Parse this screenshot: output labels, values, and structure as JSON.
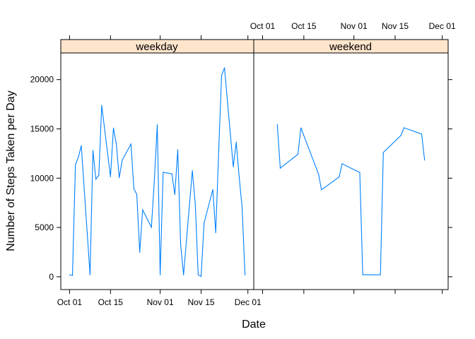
{
  "chart_data": {
    "type": "line",
    "layout": "lattice-panels-side-by-side",
    "xlabel": "Date",
    "ylabel": "Number of Steps Taken per Day",
    "xlim": [
      "2012-09-28",
      "2012-12-03"
    ],
    "ylim": [
      -1300,
      22700
    ],
    "x_ticks": [
      "Oct 01",
      "Oct 15",
      "Nov 01",
      "Nov 15",
      "Dec 01"
    ],
    "x_tick_dates": [
      "2012-10-01",
      "2012-10-15",
      "2012-11-01",
      "2012-11-15",
      "2012-12-01"
    ],
    "y_ticks": [
      0,
      5000,
      10000,
      15000,
      20000
    ],
    "strip_color": "#ffe5cc",
    "line_color": "#0080ff",
    "grid": false,
    "panels": [
      {
        "name": "weekday",
        "x": [
          "2012-10-01",
          "2012-10-02",
          "2012-10-03",
          "2012-10-04",
          "2012-10-05",
          "2012-10-08",
          "2012-10-09",
          "2012-10-10",
          "2012-10-11",
          "2012-10-12",
          "2012-10-15",
          "2012-10-16",
          "2012-10-17",
          "2012-10-18",
          "2012-10-19",
          "2012-10-22",
          "2012-10-23",
          "2012-10-24",
          "2012-10-25",
          "2012-10-26",
          "2012-10-29",
          "2012-10-30",
          "2012-10-31",
          "2012-11-01",
          "2012-11-02",
          "2012-11-05",
          "2012-11-06",
          "2012-11-07",
          "2012-11-08",
          "2012-11-09",
          "2012-11-12",
          "2012-11-13",
          "2012-11-14",
          "2012-11-15",
          "2012-11-16",
          "2012-11-19",
          "2012-11-20",
          "2012-11-21",
          "2012-11-22",
          "2012-11-23",
          "2012-11-26",
          "2012-11-27",
          "2012-11-28",
          "2012-11-29",
          "2012-11-30"
        ],
        "y": [
          200,
          126,
          11352,
          12116,
          13294,
          200,
          12811,
          9900,
          10304,
          17382,
          10139,
          15084,
          13452,
          10056,
          11829,
          13460,
          8918,
          8355,
          2492,
          6778,
          5018,
          9819,
          15414,
          200,
          10600,
          10439,
          8334,
          12883,
          3219,
          200,
          10765,
          7336,
          200,
          41,
          5441,
          8841,
          4472,
          12787,
          20427,
          21194,
          11162,
          13646,
          10183,
          7047,
          200
        ]
      },
      {
        "name": "weekend",
        "x": [
          "2012-10-06",
          "2012-10-07",
          "2012-10-13",
          "2012-10-14",
          "2012-10-20",
          "2012-10-21",
          "2012-10-27",
          "2012-10-28",
          "2012-11-03",
          "2012-11-04",
          "2012-11-10",
          "2012-11-11",
          "2012-11-17",
          "2012-11-18",
          "2012-11-24",
          "2012-11-25"
        ],
        "y": [
          15420,
          11015,
          12426,
          15098,
          10395,
          8821,
          10119,
          11458,
          10571,
          200,
          200,
          12608,
          14339,
          15110,
          14478,
          11834
        ]
      }
    ]
  }
}
